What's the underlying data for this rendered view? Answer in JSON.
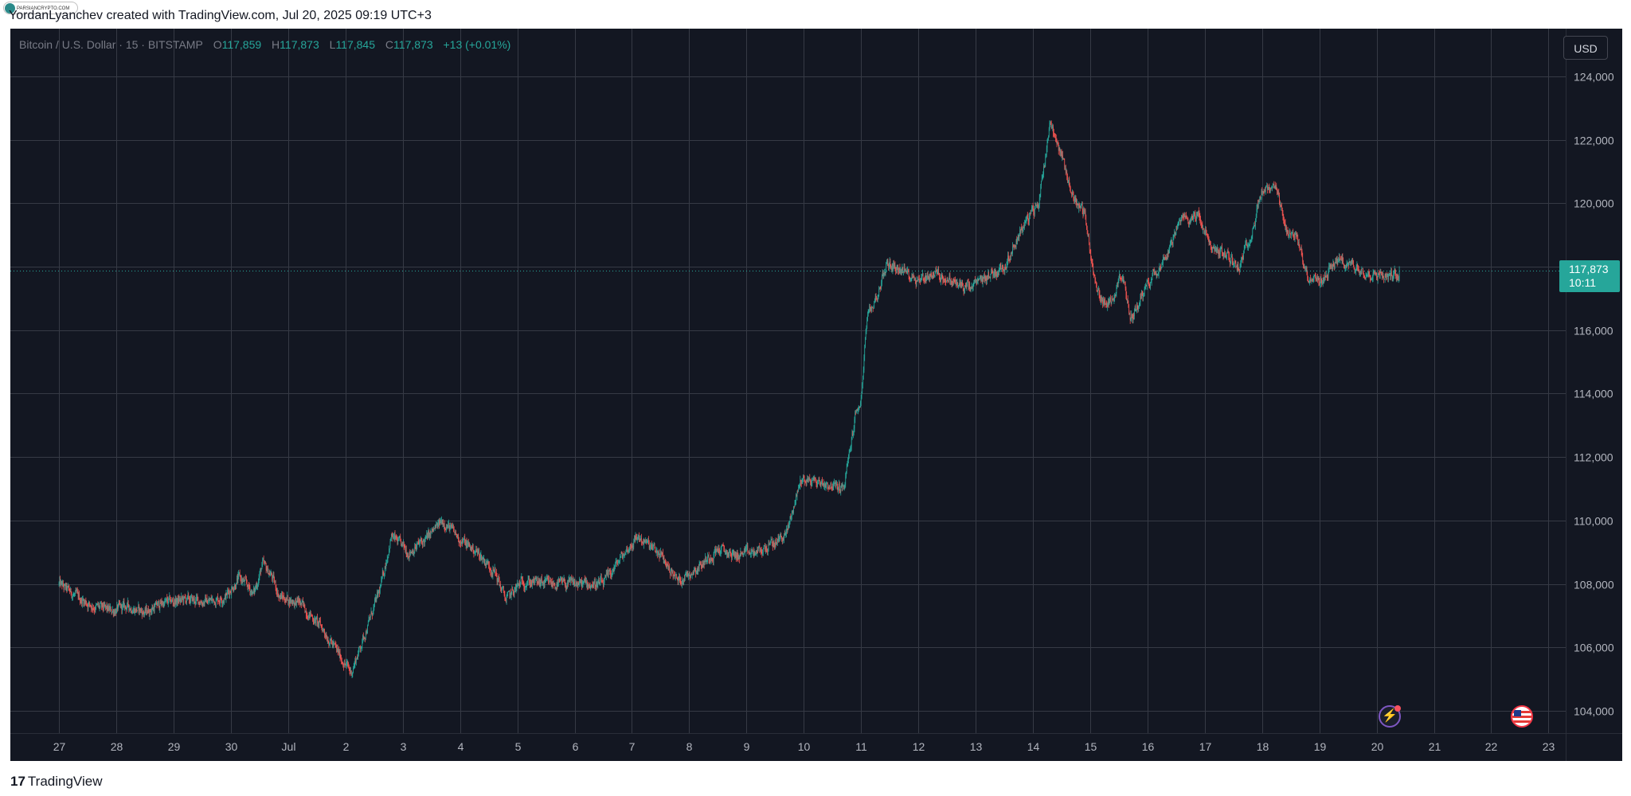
{
  "header": {
    "watermark_text": "PARSIANCRYPTO.COM",
    "credit": "YordanLyanchev created with TradingView.com, Jul 20, 2025 09:19 UTC+3"
  },
  "legend": {
    "symbol": "Bitcoin / U.S. Dollar · 15 · BITSTAMP",
    "open_label": "O",
    "open": "117,859",
    "high_label": "H",
    "high": "117,873",
    "low_label": "L",
    "low": "117,845",
    "close_label": "C",
    "close": "117,873",
    "change": "+13 (+0.01%)"
  },
  "currency": "USD",
  "last_price": {
    "price": "117,873",
    "countdown": "10:11"
  },
  "colors": {
    "background": "#131722",
    "grid": "#363a45",
    "up": "#26a69a",
    "down": "#ef5350",
    "axis_text": "#b2b5be",
    "last_price_badge": "#26a69a"
  },
  "footer": {
    "logo_mark": "17",
    "logo_text": "TradingView"
  },
  "chart_data": {
    "type": "candlestick",
    "symbol": "Bitcoin / U.S. Dollar",
    "interval": "15",
    "exchange": "BITSTAMP",
    "y_ticks": [
      104000,
      106000,
      108000,
      110000,
      112000,
      114000,
      116000,
      118000,
      120000,
      122000,
      124000
    ],
    "y_tick_labels": [
      "104,000",
      "106,000",
      "108,000",
      "110,000",
      "112,000",
      "114,000",
      "116,000",
      "118,000",
      "120,000",
      "122,000",
      "124,000"
    ],
    "ylim": [
      103300,
      125500
    ],
    "x_tick_labels": [
      "27",
      "28",
      "29",
      "30",
      "Jul",
      "2",
      "3",
      "4",
      "5",
      "6",
      "7",
      "8",
      "9",
      "10",
      "11",
      "12",
      "13",
      "14",
      "15",
      "16",
      "17",
      "18",
      "19",
      "20",
      "21",
      "22",
      "23"
    ],
    "xlim": [
      -0.85,
      26.3
    ],
    "grid": true,
    "last_price": 117873,
    "price_anchors": [
      [
        0.0,
        108000
      ],
      [
        0.3,
        107600
      ],
      [
        0.6,
        107300
      ],
      [
        0.9,
        107150
      ],
      [
        1.2,
        107300
      ],
      [
        1.5,
        107100
      ],
      [
        1.8,
        107400
      ],
      [
        2.2,
        107500
      ],
      [
        2.6,
        107450
      ],
      [
        2.9,
        107600
      ],
      [
        3.15,
        108200
      ],
      [
        3.4,
        107700
      ],
      [
        3.55,
        108600
      ],
      [
        3.7,
        108300
      ],
      [
        3.85,
        107600
      ],
      [
        4.2,
        107400
      ],
      [
        4.6,
        106600
      ],
      [
        4.95,
        105600
      ],
      [
        5.1,
        105200
      ],
      [
        5.35,
        106500
      ],
      [
        5.6,
        107800
      ],
      [
        5.8,
        109500
      ],
      [
        6.1,
        109000
      ],
      [
        6.4,
        109400
      ],
      [
        6.7,
        110000
      ],
      [
        7.0,
        109400
      ],
      [
        7.3,
        109000
      ],
      [
        7.6,
        108400
      ],
      [
        7.8,
        107500
      ],
      [
        8.1,
        108100
      ],
      [
        8.5,
        108000
      ],
      [
        9.0,
        108000
      ],
      [
        9.5,
        108000
      ],
      [
        9.8,
        108800
      ],
      [
        10.1,
        109500
      ],
      [
        10.5,
        108900
      ],
      [
        10.8,
        108100
      ],
      [
        11.2,
        108600
      ],
      [
        11.5,
        109100
      ],
      [
        11.8,
        108900
      ],
      [
        12.2,
        109000
      ],
      [
        12.5,
        109300
      ],
      [
        12.7,
        109600
      ],
      [
        12.95,
        111300
      ],
      [
        13.3,
        111200
      ],
      [
        13.7,
        111000
      ],
      [
        13.9,
        113300
      ],
      [
        14.0,
        113800
      ],
      [
        14.1,
        116300
      ],
      [
        14.3,
        117200
      ],
      [
        14.45,
        118100
      ],
      [
        14.7,
        117900
      ],
      [
        15.0,
        117600
      ],
      [
        15.3,
        117800
      ],
      [
        15.6,
        117500
      ],
      [
        15.9,
        117300
      ],
      [
        16.2,
        117700
      ],
      [
        16.5,
        118000
      ],
      [
        16.8,
        119200
      ],
      [
        17.1,
        120000
      ],
      [
        17.3,
        122600
      ],
      [
        17.5,
        121500
      ],
      [
        17.7,
        120200
      ],
      [
        17.9,
        119700
      ],
      [
        18.1,
        117300
      ],
      [
        18.3,
        116700
      ],
      [
        18.55,
        117800
      ],
      [
        18.7,
        116300
      ],
      [
        19.0,
        117500
      ],
      [
        19.3,
        118300
      ],
      [
        19.6,
        119500
      ],
      [
        19.9,
        119600
      ],
      [
        20.1,
        118600
      ],
      [
        20.35,
        118400
      ],
      [
        20.6,
        118000
      ],
      [
        20.85,
        119300
      ],
      [
        21.0,
        120400
      ],
      [
        21.25,
        120400
      ],
      [
        21.4,
        119200
      ],
      [
        21.6,
        118900
      ],
      [
        21.8,
        117700
      ],
      [
        22.0,
        117500
      ],
      [
        22.3,
        118200
      ],
      [
        22.6,
        118000
      ],
      [
        22.9,
        117800
      ],
      [
        23.2,
        117700
      ],
      [
        23.4,
        117873
      ]
    ]
  }
}
